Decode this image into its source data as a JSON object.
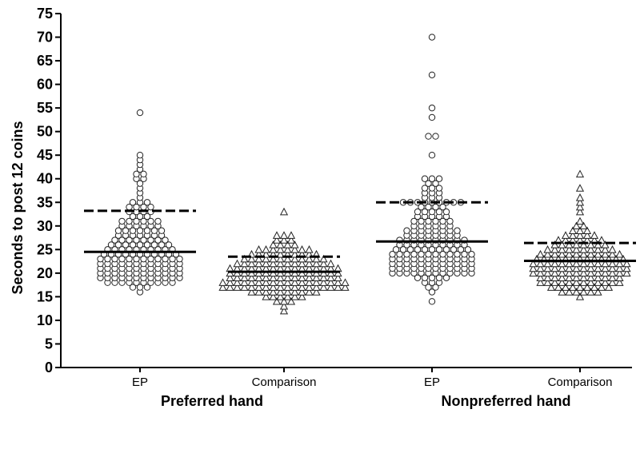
{
  "chart_data": {
    "type": "scatter",
    "subtype": "dot-plot",
    "title": "",
    "ylabel": "Seconds to post 12 coins",
    "xlabel": "",
    "ylim": [
      0,
      75
    ],
    "yticks": [
      0,
      5,
      10,
      15,
      20,
      25,
      30,
      35,
      40,
      45,
      50,
      55,
      60,
      65,
      70,
      75
    ],
    "grid": false,
    "legend": "none",
    "x_group_labels": [
      "Preferred hand",
      "Nonpreferred hand"
    ],
    "series": [
      {
        "name": "EP",
        "group": "Preferred hand",
        "marker": "circle",
        "mean_line": 24.5,
        "mean_line_style": "solid",
        "dashed_line": 33.2,
        "dashed_line_style": "dashed",
        "values": [
          54,
          45,
          44,
          43,
          42,
          41,
          41,
          40,
          40,
          39,
          38,
          37,
          36,
          35,
          35,
          35,
          34,
          34,
          34,
          34,
          33,
          33,
          33,
          33,
          32,
          32,
          32,
          31,
          31,
          31,
          31,
          31,
          31,
          30,
          30,
          30,
          30,
          30,
          30,
          29,
          29,
          29,
          29,
          29,
          29,
          29,
          28,
          28,
          28,
          28,
          28,
          28,
          28,
          27,
          27,
          27,
          27,
          27,
          27,
          27,
          27,
          26,
          26,
          26,
          26,
          26,
          26,
          26,
          26,
          26,
          25,
          25,
          25,
          25,
          25,
          25,
          25,
          25,
          25,
          25,
          24,
          24,
          24,
          24,
          24,
          24,
          24,
          24,
          24,
          24,
          24,
          23,
          23,
          23,
          23,
          23,
          23,
          23,
          23,
          23,
          23,
          23,
          23,
          22,
          22,
          22,
          22,
          22,
          22,
          22,
          22,
          22,
          22,
          22,
          22,
          21,
          21,
          21,
          21,
          21,
          21,
          21,
          21,
          21,
          21,
          21,
          21,
          20,
          20,
          20,
          20,
          20,
          20,
          20,
          20,
          20,
          20,
          20,
          20,
          19,
          19,
          19,
          19,
          19,
          19,
          19,
          19,
          19,
          19,
          19,
          19,
          18,
          18,
          18,
          18,
          18,
          18,
          18,
          18,
          18,
          18,
          17,
          17,
          17,
          16
        ]
      },
      {
        "name": "Comparison",
        "group": "Preferred hand",
        "marker": "triangle",
        "mean_line": 20.3,
        "mean_line_style": "solid",
        "dashed_line": 23.5,
        "dashed_line_style": "dashed",
        "values": [
          33,
          28,
          28,
          28,
          27,
          27,
          27,
          26,
          26,
          26,
          26,
          25,
          25,
          25,
          25,
          25,
          25,
          25,
          25,
          24,
          24,
          24,
          24,
          24,
          24,
          24,
          24,
          24,
          24,
          23,
          23,
          23,
          23,
          23,
          23,
          23,
          23,
          23,
          23,
          23,
          23,
          22,
          22,
          22,
          22,
          22,
          22,
          22,
          22,
          22,
          22,
          22,
          22,
          22,
          22,
          21,
          21,
          21,
          21,
          21,
          21,
          21,
          21,
          21,
          21,
          21,
          21,
          21,
          21,
          21,
          21,
          20,
          20,
          20,
          20,
          20,
          20,
          20,
          20,
          20,
          20,
          20,
          20,
          20,
          20,
          20,
          20,
          19,
          19,
          19,
          19,
          19,
          19,
          19,
          19,
          19,
          19,
          19,
          19,
          19,
          19,
          19,
          19,
          18,
          18,
          18,
          18,
          18,
          18,
          18,
          18,
          18,
          18,
          18,
          18,
          18,
          18,
          18,
          18,
          18,
          18,
          17,
          17,
          17,
          17,
          17,
          17,
          17,
          17,
          17,
          17,
          17,
          17,
          17,
          17,
          17,
          17,
          17,
          17,
          16,
          16,
          16,
          16,
          16,
          16,
          16,
          16,
          16,
          16,
          15,
          15,
          15,
          15,
          15,
          15,
          14,
          14,
          14,
          13,
          12
        ]
      },
      {
        "name": "EP",
        "group": "Nonpreferred hand",
        "marker": "circle",
        "mean_line": 26.7,
        "mean_line_style": "solid",
        "dashed_line": 35.0,
        "dashed_line_style": "dashed",
        "values": [
          70,
          62,
          55,
          53,
          49,
          49,
          45,
          40,
          40,
          40,
          39,
          39,
          38,
          38,
          38,
          37,
          37,
          37,
          36,
          36,
          36,
          35,
          35,
          35,
          35,
          35,
          35,
          35,
          35,
          35,
          34,
          34,
          34,
          34,
          33,
          33,
          33,
          33,
          33,
          32,
          32,
          32,
          32,
          32,
          31,
          31,
          31,
          31,
          31,
          31,
          30,
          30,
          30,
          30,
          30,
          30,
          29,
          29,
          29,
          29,
          29,
          29,
          29,
          29,
          28,
          28,
          28,
          28,
          28,
          28,
          28,
          28,
          27,
          27,
          27,
          27,
          27,
          27,
          27,
          27,
          27,
          27,
          26,
          26,
          26,
          26,
          26,
          26,
          26,
          26,
          26,
          26,
          25,
          25,
          25,
          25,
          25,
          25,
          25,
          25,
          25,
          25,
          25,
          24,
          24,
          24,
          24,
          24,
          24,
          24,
          24,
          24,
          24,
          24,
          24,
          23,
          23,
          23,
          23,
          23,
          23,
          23,
          23,
          23,
          23,
          23,
          23,
          22,
          22,
          22,
          22,
          22,
          22,
          22,
          22,
          22,
          22,
          22,
          22,
          21,
          21,
          21,
          21,
          21,
          21,
          21,
          21,
          21,
          21,
          21,
          21,
          20,
          20,
          20,
          20,
          20,
          20,
          20,
          20,
          20,
          20,
          20,
          20,
          19,
          19,
          19,
          19,
          19,
          18,
          18,
          18,
          17,
          17,
          16,
          14
        ]
      },
      {
        "name": "Comparison",
        "group": "Nonpreferred hand",
        "marker": "triangle",
        "mean_line": 22.6,
        "mean_line_style": "solid",
        "dashed_line": 26.4,
        "dashed_line_style": "dashed",
        "values": [
          41,
          38,
          36,
          35,
          34,
          33,
          31,
          30,
          30,
          29,
          29,
          29,
          28,
          28,
          28,
          28,
          28,
          27,
          27,
          27,
          27,
          27,
          27,
          27,
          26,
          26,
          26,
          26,
          26,
          26,
          26,
          26,
          25,
          25,
          25,
          25,
          25,
          25,
          25,
          25,
          25,
          25,
          24,
          24,
          24,
          24,
          24,
          24,
          24,
          24,
          24,
          24,
          24,
          24,
          23,
          23,
          23,
          23,
          23,
          23,
          23,
          23,
          23,
          23,
          23,
          23,
          23,
          22,
          22,
          22,
          22,
          22,
          22,
          22,
          22,
          22,
          22,
          22,
          22,
          22,
          22,
          21,
          21,
          21,
          21,
          21,
          21,
          21,
          21,
          21,
          21,
          21,
          21,
          21,
          21,
          20,
          20,
          20,
          20,
          20,
          20,
          20,
          20,
          20,
          20,
          20,
          20,
          20,
          20,
          19,
          19,
          19,
          19,
          19,
          19,
          19,
          19,
          19,
          19,
          19,
          19,
          18,
          18,
          18,
          18,
          18,
          18,
          18,
          18,
          18,
          18,
          18,
          18,
          17,
          17,
          17,
          17,
          17,
          17,
          17,
          17,
          17,
          16,
          16,
          16,
          16,
          16,
          16,
          15
        ]
      }
    ]
  }
}
